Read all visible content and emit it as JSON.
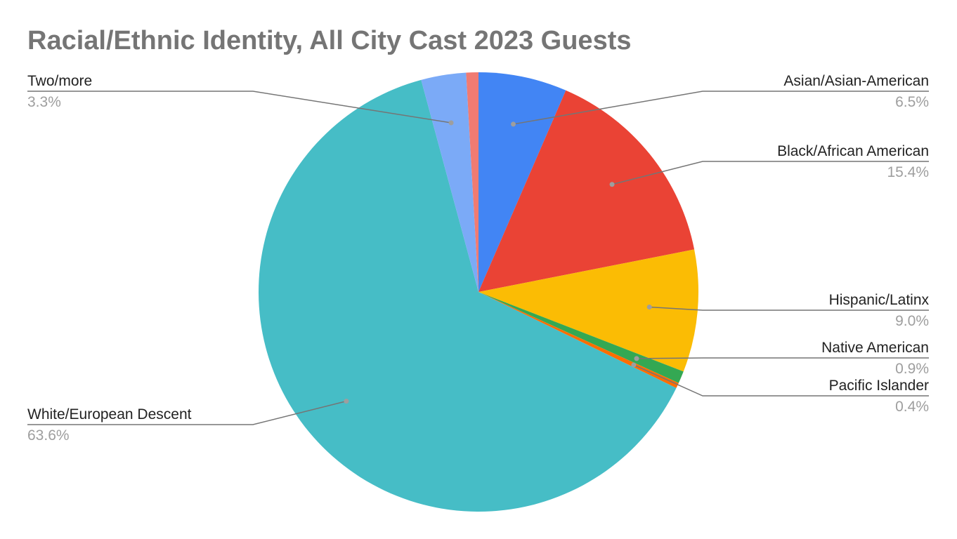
{
  "chart_data": {
    "type": "pie",
    "title": "Racial/Ethnic Identity, All City Cast 2023 Guests",
    "categories": [
      "Asian/Asian-American",
      "Black/African American",
      "Hispanic/Latinx",
      "Native American",
      "Pacific Islander",
      "White/European Descent",
      "Two/more",
      null
    ],
    "values": [
      6.5,
      15.4,
      9.0,
      0.9,
      0.4,
      63.6,
      3.3,
      0.9
    ],
    "value_labels": [
      "6.5%",
      "15.4%",
      "9.0%",
      "0.9%",
      "0.4%",
      "63.6%",
      "3.3%",
      null
    ],
    "colors": [
      "#4285f4",
      "#ea4335",
      "#fbbc04",
      "#34a853",
      "#ff6d01",
      "#46bdc6",
      "#7baaf7",
      "#f07b72"
    ]
  }
}
